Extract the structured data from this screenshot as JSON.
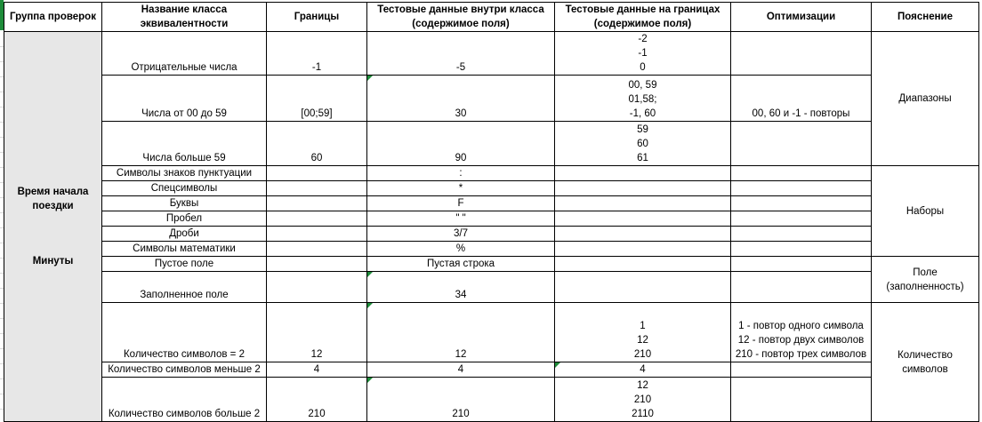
{
  "headers": {
    "group": "Группа проверок",
    "class_name": "Название класса эквивалентности",
    "bounds": "Границы",
    "inside": "Тестовые данные внутри класса (содержимое поля)",
    "edges": "Тестовые данные на границах (содержимое поля)",
    "optim": "Оптимизации",
    "expl": "Пояснение"
  },
  "group": {
    "line1": "Время начала",
    "line2": "поездки",
    "line3": "Минуты"
  },
  "rows": [
    {
      "name": "Отрицательные числа",
      "bound": "-1",
      "inside": "-5",
      "edge": [
        "-2",
        "-1",
        "0"
      ],
      "opt": []
    },
    {
      "name": "Числа от 00 до 59",
      "bound": "[00;59]",
      "inside": "30",
      "edge": [
        "00, 59",
        "01,58;",
        "-1, 60"
      ],
      "opt": [
        "00, 60 и -1 - повторы"
      ]
    },
    {
      "name": "Числа больше 59",
      "bound": "60",
      "inside": "90",
      "edge": [
        "59",
        "60",
        "61"
      ],
      "opt": []
    },
    {
      "name": "Символы знаков пунктуации",
      "bound": "",
      "inside": ":",
      "edge": [],
      "opt": []
    },
    {
      "name": "Спецсимволы",
      "bound": "",
      "inside": "*",
      "edge": [],
      "opt": []
    },
    {
      "name": "Буквы",
      "bound": "",
      "inside": "F",
      "edge": [],
      "opt": []
    },
    {
      "name": "Пробел",
      "bound": "",
      "inside": "\" \"",
      "edge": [],
      "opt": []
    },
    {
      "name": "Дроби",
      "bound": "",
      "inside": "3/7",
      "edge": [],
      "opt": []
    },
    {
      "name": "Символы математики",
      "bound": "",
      "inside": "%",
      "edge": [],
      "opt": []
    },
    {
      "name": "Пустое поле",
      "bound": "",
      "inside": "Пустая строка",
      "edge": [],
      "opt": []
    },
    {
      "name": "Заполненное поле",
      "bound": "",
      "inside": "34",
      "edge": [],
      "opt": []
    },
    {
      "name": "Количество символов = 2",
      "bound": "12",
      "inside": "12",
      "edge": [
        "1",
        "12",
        "210"
      ],
      "opt": [
        "1 - повтор одного символа",
        "12 - повтор двух символов",
        "210 - повтор трех символов"
      ]
    },
    {
      "name": "Количество символов меньше 2",
      "bound": "4",
      "inside": "4",
      "edge": [
        "4"
      ],
      "opt": []
    },
    {
      "name": "Количество символов больше 2",
      "bound": "210",
      "inside": "210",
      "edge": [
        "12",
        "210",
        "2110"
      ],
      "opt": []
    }
  ],
  "explanations": {
    "ranges": "Диапазоны",
    "sets": "Наборы",
    "field_1": "Поле",
    "field_2": "(заполненность)",
    "count_1": "Количество",
    "count_2": "символов"
  },
  "colors": {
    "group_bg": "#e7e7e7",
    "comment_marker": "#1e8c3a"
  }
}
